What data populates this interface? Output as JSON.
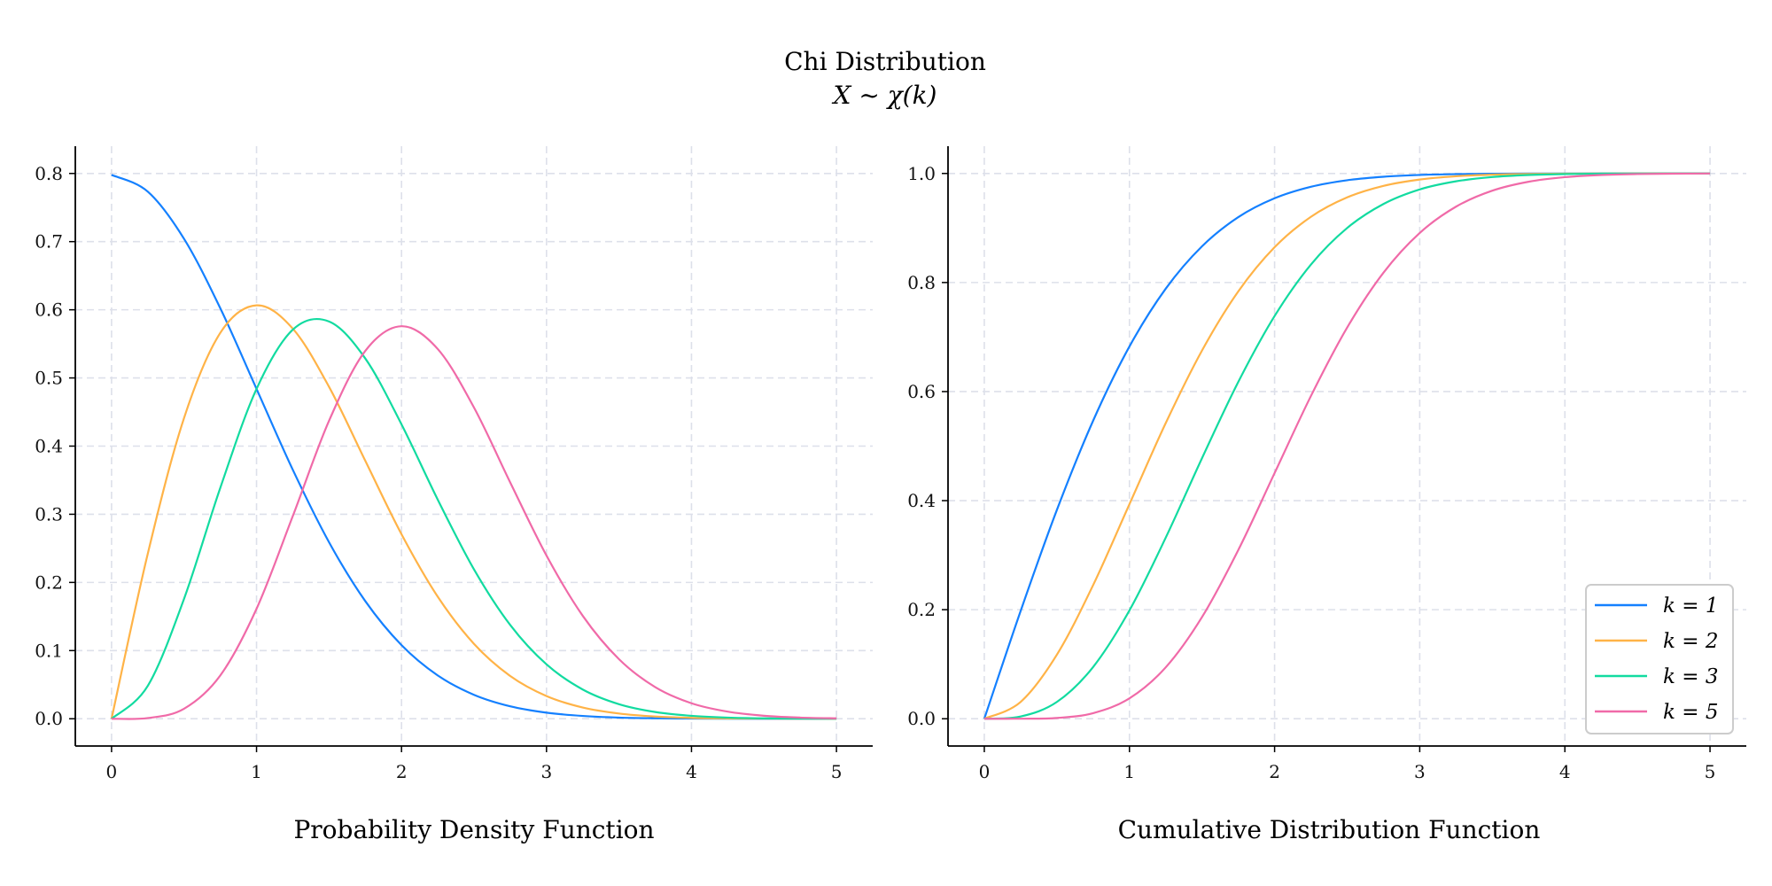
{
  "title": "Chi Distribution",
  "subtitle": "X ~ χ(k)",
  "colors": {
    "k1": "#1480ff",
    "k2": "#ffb347",
    "k3": "#12dba0",
    "k5": "#f06aa8",
    "grid": "#dde0ea"
  },
  "chart_data": [
    {
      "type": "line",
      "title": "",
      "xlabel": "Probability Density Function",
      "ylabel": "",
      "xlim": [
        -0.25,
        5.25
      ],
      "ylim": [
        -0.04,
        0.84
      ],
      "xticks": [
        0,
        1,
        2,
        3,
        4,
        5
      ],
      "yticks": [
        0.0,
        0.1,
        0.2,
        0.3,
        0.4,
        0.5,
        0.6,
        0.7,
        0.8
      ],
      "ytick_labels": [
        "0.0",
        "0.1",
        "0.2",
        "0.3",
        "0.4",
        "0.5",
        "0.6",
        "0.7",
        "0.8"
      ],
      "grid": true,
      "x": [
        0,
        0.25,
        0.5,
        0.75,
        1,
        1.25,
        1.5,
        1.75,
        2,
        2.25,
        2.5,
        2.75,
        3,
        3.25,
        3.5,
        3.75,
        4,
        4.25,
        4.5,
        4.75,
        5
      ],
      "series": [
        {
          "name": "k = 1",
          "color_key": "k1",
          "values": [
            0.7979,
            0.7733,
            0.7041,
            0.6023,
            0.4839,
            0.3653,
            0.259,
            0.1726,
            0.108,
            0.0635,
            0.0351,
            0.0182,
            0.0089,
            0.0041,
            0.0017,
            0.0007,
            0.0003,
            0.0001,
            0.0,
            0.0,
            0.0
          ]
        },
        {
          "name": "k = 2",
          "color_key": "k2",
          "values": [
            0,
            0.2423,
            0.4412,
            0.5661,
            0.6065,
            0.5723,
            0.487,
            0.3785,
            0.2707,
            0.179,
            0.1098,
            0.0627,
            0.0333,
            0.0165,
            0.0077,
            0.0033,
            0.0013,
            0.0005,
            0.0002,
            0.0001,
            0.0
          ]
        },
        {
          "name": "k = 3",
          "color_key": "k3",
          "values": [
            0,
            0.0483,
            0.176,
            0.3388,
            0.4839,
            0.5708,
            0.5828,
            0.5286,
            0.4319,
            0.3214,
            0.2191,
            0.1375,
            0.0798,
            0.0429,
            0.0214,
            0.0099,
            0.0043,
            0.0017,
            0.0006,
            0.0002,
            0.0001
          ]
        },
        {
          "name": "k = 5",
          "color_key": "k5",
          "values": [
            0,
            0.001,
            0.0147,
            0.0635,
            0.1613,
            0.2973,
            0.4371,
            0.5396,
            0.5759,
            0.5424,
            0.4565,
            0.3466,
            0.2394,
            0.151,
            0.0874,
            0.0464,
            0.0227,
            0.0104,
            0.0044,
            0.0017,
            0.0006
          ]
        }
      ]
    },
    {
      "type": "line",
      "title": "",
      "xlabel": "Cumulative Distribution Function",
      "ylabel": "",
      "xlim": [
        -0.25,
        5.25
      ],
      "ylim": [
        -0.05,
        1.05
      ],
      "xticks": [
        0,
        1,
        2,
        3,
        4,
        5
      ],
      "yticks": [
        0.0,
        0.2,
        0.4,
        0.6,
        0.8,
        1.0
      ],
      "ytick_labels": [
        "0.0",
        "0.2",
        "0.4",
        "0.6",
        "0.8",
        "1.0"
      ],
      "grid": true,
      "legend": "lower-right",
      "x": [
        0,
        0.25,
        0.5,
        0.75,
        1,
        1.25,
        1.5,
        1.75,
        2,
        2.25,
        2.5,
        2.75,
        3,
        3.25,
        3.5,
        3.75,
        4,
        4.25,
        4.5,
        4.75,
        5
      ],
      "series": [
        {
          "name": "k = 1",
          "color_key": "k1",
          "values": [
            0,
            0.1974,
            0.3829,
            0.5467,
            0.6827,
            0.7887,
            0.8664,
            0.9199,
            0.9545,
            0.9756,
            0.9876,
            0.994,
            0.9973,
            0.9988,
            0.9995,
            0.9998,
            0.9999,
            1.0,
            1.0,
            1.0,
            1.0
          ]
        },
        {
          "name": "k = 2",
          "color_key": "k2",
          "values": [
            0,
            0.0308,
            0.1175,
            0.2452,
            0.3935,
            0.5422,
            0.6753,
            0.7837,
            0.8647,
            0.9204,
            0.9561,
            0.9772,
            0.9889,
            0.9949,
            0.9978,
            0.9991,
            0.9997,
            0.9999,
            1.0,
            1.0,
            1.0
          ]
        },
        {
          "name": "k = 3",
          "color_key": "k3",
          "values": [
            0,
            0.0041,
            0.0308,
            0.095,
            0.1987,
            0.3321,
            0.4779,
            0.6178,
            0.7385,
            0.8328,
            0.9,
            0.944,
            0.9707,
            0.9856,
            0.9934,
            0.9972,
            0.9989,
            0.9996,
            0.9999,
            1.0,
            1.0
          ]
        },
        {
          "name": "k = 5",
          "color_key": "k5",
          "values": [
            0,
            0.0001,
            0.0014,
            0.0103,
            0.0374,
            0.0943,
            0.1865,
            0.3095,
            0.4505,
            0.5917,
            0.7174,
            0.818,
            0.8909,
            0.9391,
            0.9684,
            0.9848,
            0.9932,
            0.9972,
            0.9989,
            0.9996,
            0.9999
          ]
        }
      ]
    }
  ]
}
